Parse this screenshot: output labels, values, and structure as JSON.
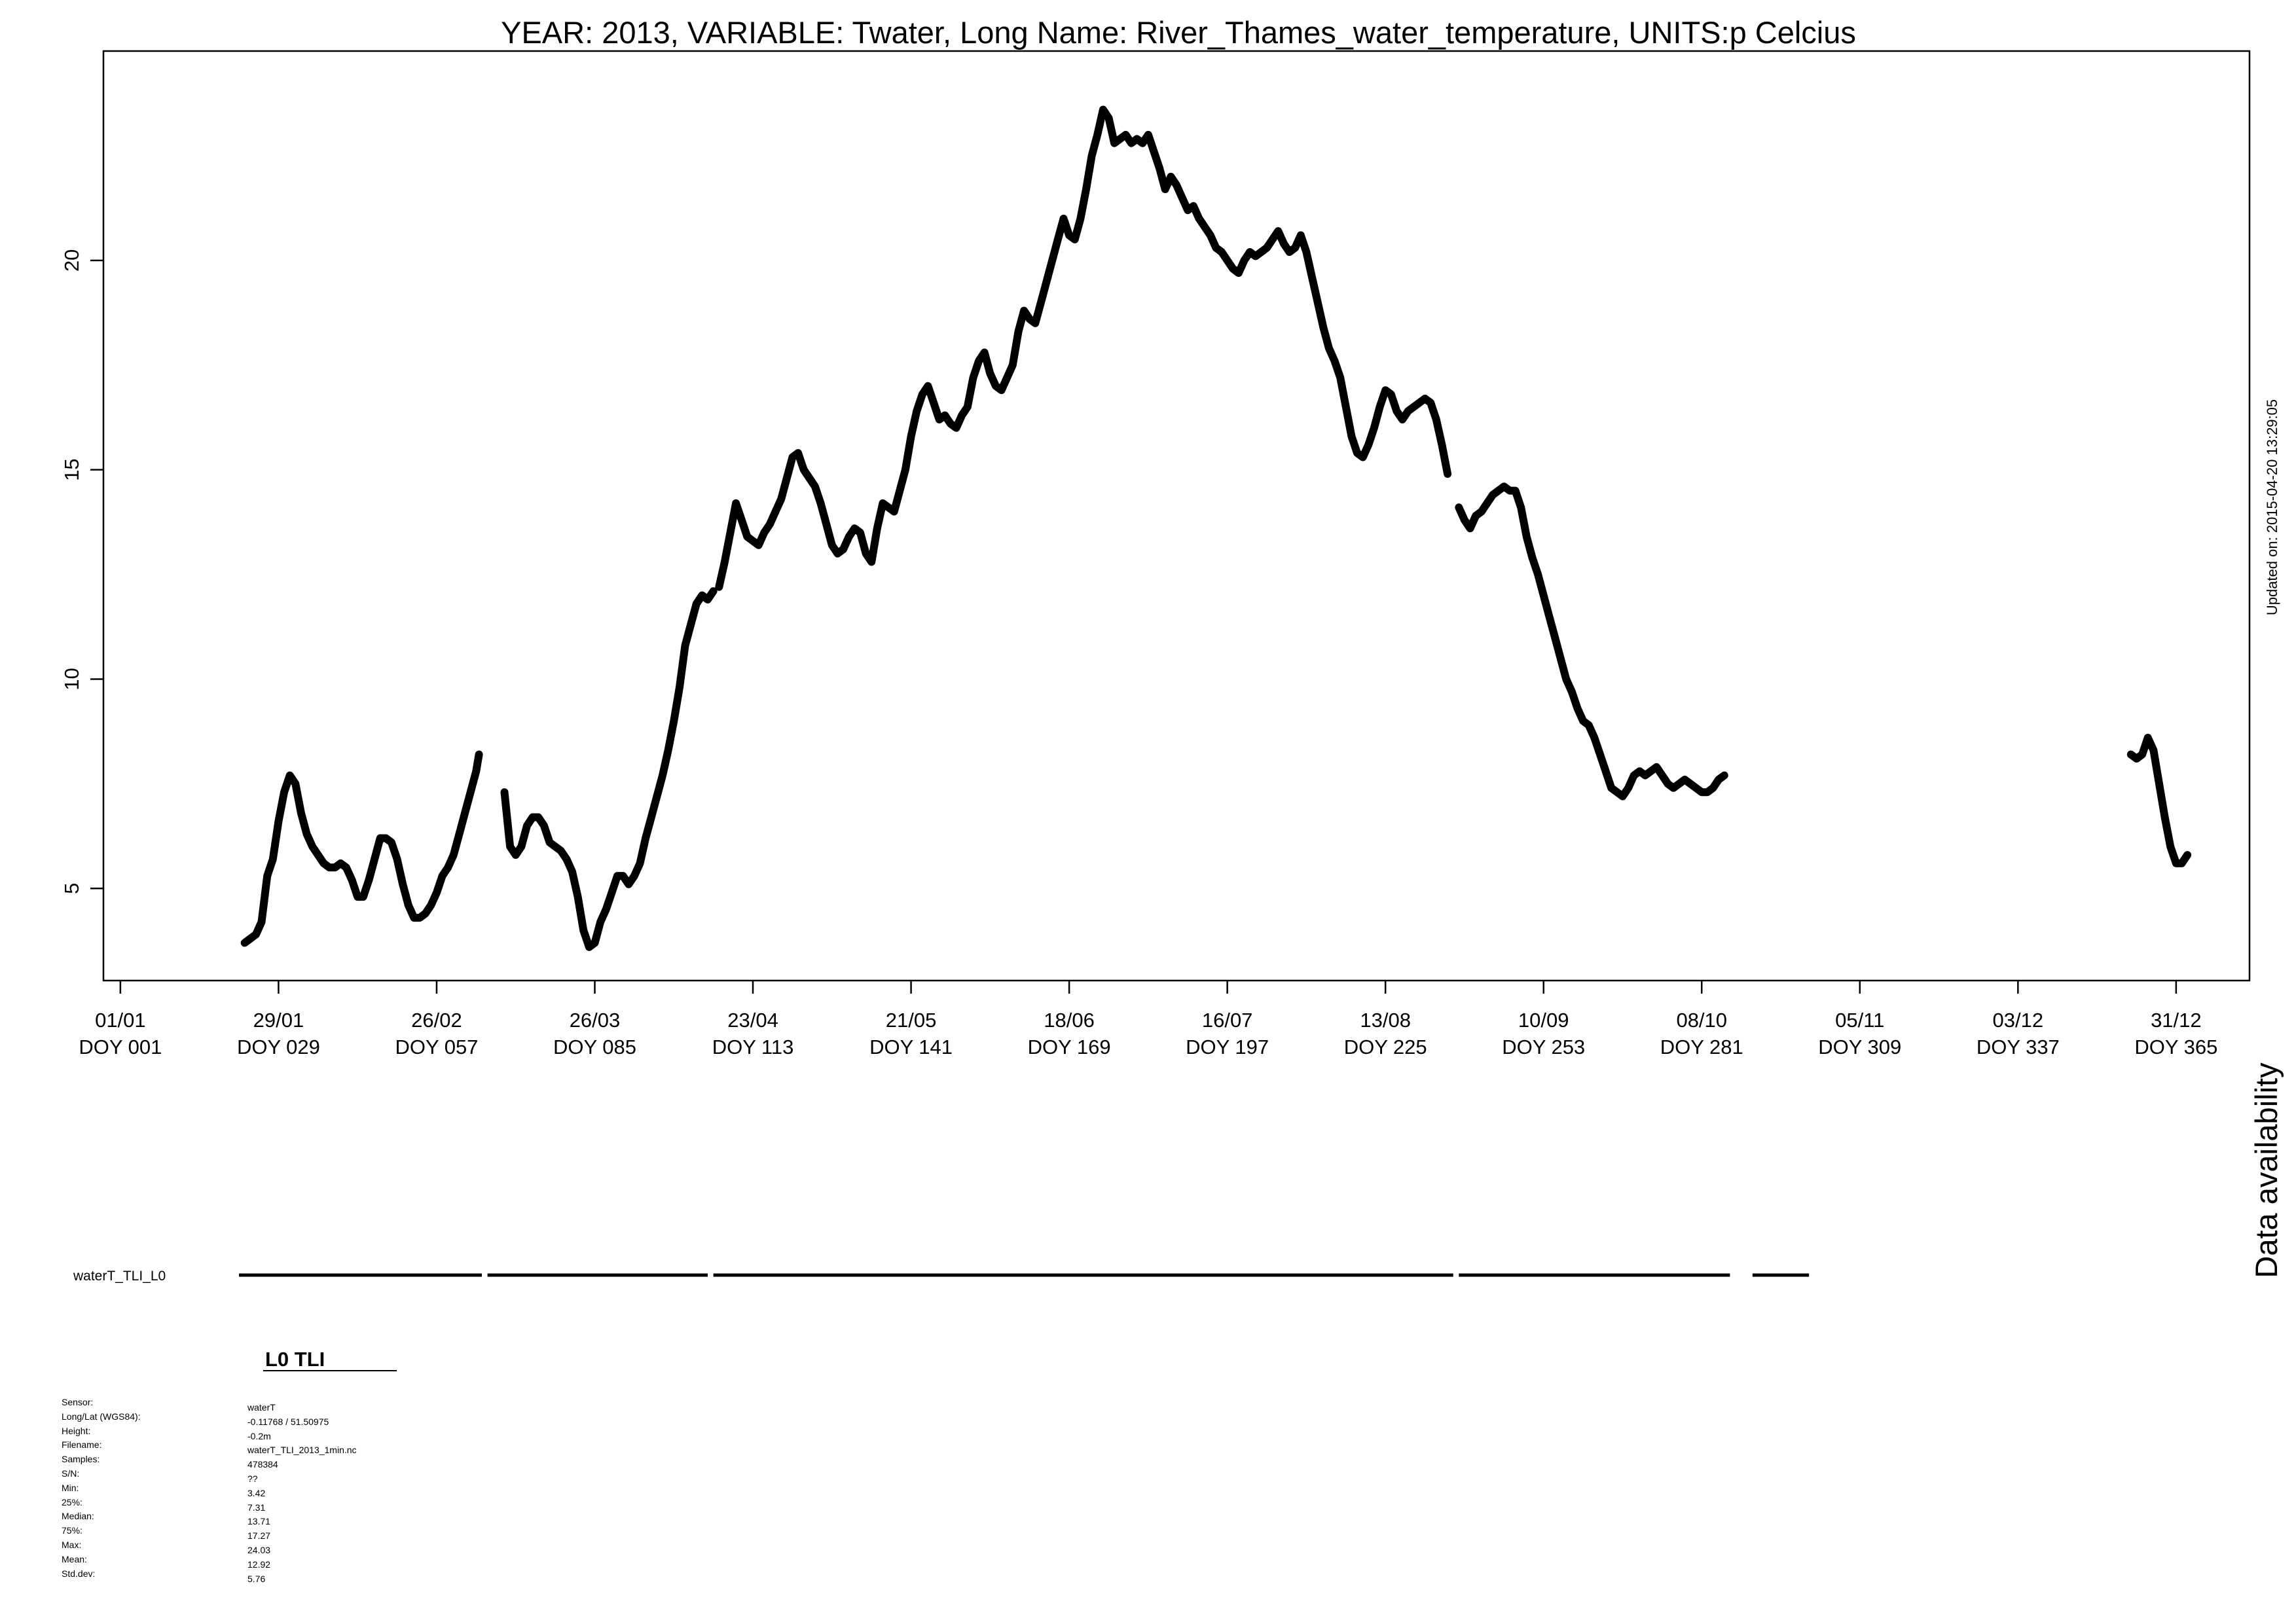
{
  "chart_data": {
    "type": "line",
    "title": "YEAR: 2013, VARIABLE: Twater, Long Name: River_Thames_water_temperature, UNITS:p Celcius",
    "xlabel": "",
    "ylabel": "",
    "xlim": [
      -2,
      378
    ],
    "ylim": [
      2.8,
      25.0
    ],
    "y_ticks": [
      5,
      10,
      15,
      20
    ],
    "x_ticks": [
      {
        "doy": 1,
        "date": "01/01",
        "label": "DOY 001"
      },
      {
        "doy": 29,
        "date": "29/01",
        "label": "DOY 029"
      },
      {
        "doy": 57,
        "date": "26/02",
        "label": "DOY 057"
      },
      {
        "doy": 85,
        "date": "26/03",
        "label": "DOY 085"
      },
      {
        "doy": 113,
        "date": "23/04",
        "label": "DOY 113"
      },
      {
        "doy": 141,
        "date": "21/05",
        "label": "DOY 141"
      },
      {
        "doy": 169,
        "date": "18/06",
        "label": "DOY 169"
      },
      {
        "doy": 197,
        "date": "16/07",
        "label": "DOY 197"
      },
      {
        "doy": 225,
        "date": "13/08",
        "label": "DOY 225"
      },
      {
        "doy": 253,
        "date": "10/09",
        "label": "DOY 253"
      },
      {
        "doy": 281,
        "date": "08/10",
        "label": "DOY 281"
      },
      {
        "doy": 309,
        "date": "05/11",
        "label": "DOY 309"
      },
      {
        "doy": 337,
        "date": "03/12",
        "label": "DOY 337"
      },
      {
        "doy": 365,
        "date": "31/12",
        "label": "DOY 365"
      }
    ],
    "grid": false,
    "series_color": "#000000",
    "series_segments": [
      [
        [
          23,
          3.7
        ],
        [
          24,
          3.8
        ],
        [
          25,
          3.9
        ],
        [
          26,
          4.2
        ],
        [
          27,
          5.3
        ],
        [
          28,
          5.7
        ],
        [
          29,
          6.6
        ],
        [
          30,
          7.3
        ],
        [
          31,
          7.7
        ],
        [
          32,
          7.5
        ],
        [
          33,
          6.8
        ],
        [
          34,
          6.3
        ],
        [
          35,
          6.0
        ],
        [
          36,
          5.8
        ],
        [
          37,
          5.6
        ],
        [
          38,
          5.5
        ],
        [
          39,
          5.5
        ],
        [
          40,
          5.6
        ],
        [
          41,
          5.5
        ],
        [
          42,
          5.2
        ],
        [
          43,
          4.8
        ],
        [
          44,
          4.8
        ],
        [
          45,
          5.2
        ],
        [
          46,
          5.7
        ],
        [
          47,
          6.2
        ],
        [
          48,
          6.2
        ],
        [
          49,
          6.1
        ],
        [
          50,
          5.7
        ],
        [
          51,
          5.1
        ],
        [
          52,
          4.6
        ],
        [
          53,
          4.3
        ],
        [
          54,
          4.3
        ],
        [
          55,
          4.4
        ],
        [
          56,
          4.6
        ],
        [
          57,
          4.9
        ],
        [
          58,
          5.3
        ],
        [
          59,
          5.5
        ],
        [
          60,
          5.8
        ],
        [
          61,
          6.3
        ],
        [
          62,
          6.8
        ],
        [
          63,
          7.3
        ],
        [
          64,
          7.8
        ],
        [
          64.5,
          8.2
        ]
      ],
      [
        [
          69,
          7.3
        ],
        [
          70,
          6.0
        ],
        [
          71,
          5.8
        ],
        [
          72,
          6.0
        ],
        [
          73,
          6.5
        ],
        [
          74,
          6.7
        ],
        [
          75,
          6.7
        ],
        [
          76,
          6.5
        ],
        [
          77,
          6.1
        ],
        [
          78,
          6.0
        ],
        [
          79,
          5.9
        ],
        [
          80,
          5.7
        ],
        [
          81,
          5.4
        ],
        [
          82,
          4.8
        ],
        [
          83,
          4.0
        ],
        [
          84,
          3.6
        ],
        [
          85,
          3.7
        ],
        [
          86,
          4.2
        ],
        [
          87,
          4.5
        ],
        [
          88,
          4.9
        ],
        [
          89,
          5.3
        ],
        [
          90,
          5.3
        ],
        [
          91,
          5.1
        ],
        [
          92,
          5.3
        ],
        [
          93,
          5.6
        ],
        [
          94,
          6.2
        ],
        [
          95,
          6.7
        ],
        [
          96,
          7.2
        ],
        [
          97,
          7.7
        ],
        [
          98,
          8.3
        ],
        [
          99,
          9.0
        ],
        [
          100,
          9.8
        ],
        [
          101,
          10.8
        ],
        [
          102,
          11.3
        ],
        [
          103,
          11.8
        ],
        [
          104,
          12.0
        ],
        [
          105,
          11.9
        ],
        [
          106,
          12.1
        ]
      ],
      [
        [
          107,
          12.2
        ],
        [
          108,
          12.8
        ],
        [
          109,
          13.5
        ],
        [
          110,
          14.2
        ],
        [
          111,
          13.8
        ],
        [
          112,
          13.4
        ],
        [
          113,
          13.3
        ],
        [
          114,
          13.2
        ],
        [
          115,
          13.5
        ],
        [
          116,
          13.7
        ],
        [
          117,
          14.0
        ],
        [
          118,
          14.3
        ],
        [
          119,
          14.8
        ],
        [
          120,
          15.3
        ],
        [
          121,
          15.4
        ],
        [
          122,
          15.0
        ],
        [
          123,
          14.8
        ],
        [
          124,
          14.6
        ],
        [
          125,
          14.2
        ],
        [
          126,
          13.7
        ],
        [
          127,
          13.2
        ],
        [
          128,
          13.0
        ],
        [
          129,
          13.1
        ],
        [
          130,
          13.4
        ],
        [
          131,
          13.6
        ],
        [
          132,
          13.5
        ],
        [
          133,
          13.0
        ],
        [
          134,
          12.8
        ],
        [
          135,
          13.6
        ],
        [
          136,
          14.2
        ],
        [
          137,
          14.1
        ],
        [
          138,
          14.0
        ],
        [
          139,
          14.5
        ],
        [
          140,
          15.0
        ],
        [
          141,
          15.8
        ],
        [
          142,
          16.4
        ],
        [
          143,
          16.8
        ],
        [
          144,
          17.0
        ],
        [
          145,
          16.6
        ],
        [
          146,
          16.2
        ],
        [
          147,
          16.3
        ],
        [
          148,
          16.1
        ],
        [
          149,
          16.0
        ],
        [
          150,
          16.3
        ],
        [
          151,
          16.5
        ],
        [
          152,
          17.2
        ],
        [
          153,
          17.6
        ],
        [
          154,
          17.8
        ],
        [
          155,
          17.3
        ],
        [
          156,
          17.0
        ],
        [
          157,
          16.9
        ],
        [
          158,
          17.2
        ],
        [
          159,
          17.5
        ],
        [
          160,
          18.3
        ],
        [
          161,
          18.8
        ],
        [
          162,
          18.6
        ],
        [
          163,
          18.5
        ],
        [
          164,
          19.0
        ],
        [
          165,
          19.5
        ],
        [
          166,
          20.0
        ],
        [
          167,
          20.5
        ],
        [
          168,
          21.0
        ],
        [
          169,
          20.6
        ],
        [
          170,
          20.5
        ],
        [
          171,
          21.0
        ],
        [
          172,
          21.7
        ],
        [
          173,
          22.5
        ],
        [
          174,
          23.0
        ],
        [
          175,
          23.6
        ],
        [
          176,
          23.4
        ],
        [
          177,
          22.8
        ],
        [
          178,
          22.9
        ],
        [
          179,
          23.0
        ],
        [
          180,
          22.8
        ],
        [
          181,
          22.9
        ],
        [
          182,
          22.8
        ],
        [
          183,
          23.0
        ],
        [
          184,
          22.6
        ],
        [
          185,
          22.2
        ],
        [
          186,
          21.7
        ],
        [
          187,
          22.0
        ],
        [
          188,
          21.8
        ],
        [
          189,
          21.5
        ],
        [
          190,
          21.2
        ],
        [
          191,
          21.3
        ],
        [
          192,
          21.0
        ],
        [
          193,
          20.8
        ],
        [
          194,
          20.6
        ],
        [
          195,
          20.3
        ],
        [
          196,
          20.2
        ],
        [
          197,
          20.0
        ],
        [
          198,
          19.8
        ],
        [
          199,
          19.7
        ],
        [
          200,
          20.0
        ],
        [
          201,
          20.2
        ],
        [
          202,
          20.1
        ],
        [
          203,
          20.2
        ],
        [
          204,
          20.3
        ],
        [
          205,
          20.5
        ],
        [
          206,
          20.7
        ],
        [
          207,
          20.4
        ],
        [
          208,
          20.2
        ],
        [
          209,
          20.3
        ],
        [
          210,
          20.6
        ],
        [
          211,
          20.2
        ],
        [
          212,
          19.6
        ],
        [
          213,
          19.0
        ],
        [
          214,
          18.4
        ],
        [
          215,
          17.9
        ],
        [
          216,
          17.6
        ],
        [
          217,
          17.2
        ],
        [
          218,
          16.5
        ],
        [
          219,
          15.8
        ],
        [
          220,
          15.4
        ],
        [
          221,
          15.3
        ],
        [
          222,
          15.6
        ],
        [
          223,
          16.0
        ],
        [
          224,
          16.5
        ],
        [
          225,
          16.9
        ],
        [
          226,
          16.8
        ],
        [
          227,
          16.4
        ],
        [
          228,
          16.2
        ],
        [
          229,
          16.4
        ],
        [
          230,
          16.5
        ],
        [
          231,
          16.6
        ],
        [
          232,
          16.7
        ],
        [
          233,
          16.6
        ],
        [
          234,
          16.2
        ],
        [
          235,
          15.6
        ],
        [
          236,
          14.9
        ]
      ],
      [
        [
          238,
          14.1
        ],
        [
          239,
          13.8
        ],
        [
          240,
          13.6
        ],
        [
          241,
          13.9
        ],
        [
          242,
          14.0
        ],
        [
          243,
          14.2
        ],
        [
          244,
          14.4
        ],
        [
          245,
          14.5
        ],
        [
          246,
          14.6
        ],
        [
          247,
          14.5
        ],
        [
          248,
          14.5
        ],
        [
          249,
          14.1
        ],
        [
          250,
          13.4
        ],
        [
          251,
          12.9
        ],
        [
          252,
          12.5
        ],
        [
          253,
          12.0
        ],
        [
          254,
          11.5
        ],
        [
          255,
          11.0
        ],
        [
          256,
          10.5
        ],
        [
          257,
          10.0
        ],
        [
          258,
          9.7
        ],
        [
          259,
          9.3
        ],
        [
          260,
          9.0
        ],
        [
          261,
          8.9
        ],
        [
          262,
          8.6
        ],
        [
          263,
          8.2
        ],
        [
          264,
          7.8
        ],
        [
          265,
          7.4
        ],
        [
          266,
          7.3
        ],
        [
          267,
          7.2
        ],
        [
          268,
          7.4
        ],
        [
          269,
          7.7
        ],
        [
          270,
          7.8
        ],
        [
          271,
          7.7
        ],
        [
          272,
          7.8
        ],
        [
          273,
          7.9
        ],
        [
          274,
          7.7
        ],
        [
          275,
          7.5
        ],
        [
          276,
          7.4
        ],
        [
          277,
          7.5
        ],
        [
          278,
          7.6
        ],
        [
          279,
          7.5
        ],
        [
          280,
          7.4
        ],
        [
          281,
          7.3
        ],
        [
          282,
          7.3
        ],
        [
          283,
          7.4
        ],
        [
          284,
          7.6
        ],
        [
          285,
          7.7
        ]
      ],
      [
        [
          357,
          8.2
        ],
        [
          358,
          8.1
        ],
        [
          359,
          8.2
        ],
        [
          360,
          8.6
        ],
        [
          361,
          8.3
        ],
        [
          362,
          7.5
        ],
        [
          363,
          6.7
        ],
        [
          364,
          6.0
        ],
        [
          365,
          5.6
        ],
        [
          366,
          5.6
        ],
        [
          367,
          5.8
        ]
      ]
    ]
  },
  "updated_on": "Updated on: 2015-04-20 13:29:05",
  "availability": {
    "title": "Data availability",
    "label": "waterT_TLI_L0",
    "ranges": [
      [
        22,
        65
      ],
      [
        66,
        105
      ],
      [
        106,
        237
      ],
      [
        238,
        286
      ],
      [
        290,
        300
      ]
    ]
  },
  "meta": {
    "heading": "L0 TLI",
    "labels": [
      "Sensor:",
      "Long/Lat (WGS84):",
      "Height:",
      "Filename:",
      "Samples:",
      "S/N:",
      "Min:",
      "25%:",
      "Median:",
      "75%:",
      "Max:",
      "Mean:",
      "Std.dev:"
    ],
    "values": [
      "waterT",
      "-0.11768 / 51.50975",
      "-0.2m",
      "waterT_TLI_2013_1min.nc",
      "478384",
      "??",
      "3.42",
      "7.31",
      "13.71",
      "17.27",
      "24.03",
      "12.92",
      "5.76"
    ]
  }
}
